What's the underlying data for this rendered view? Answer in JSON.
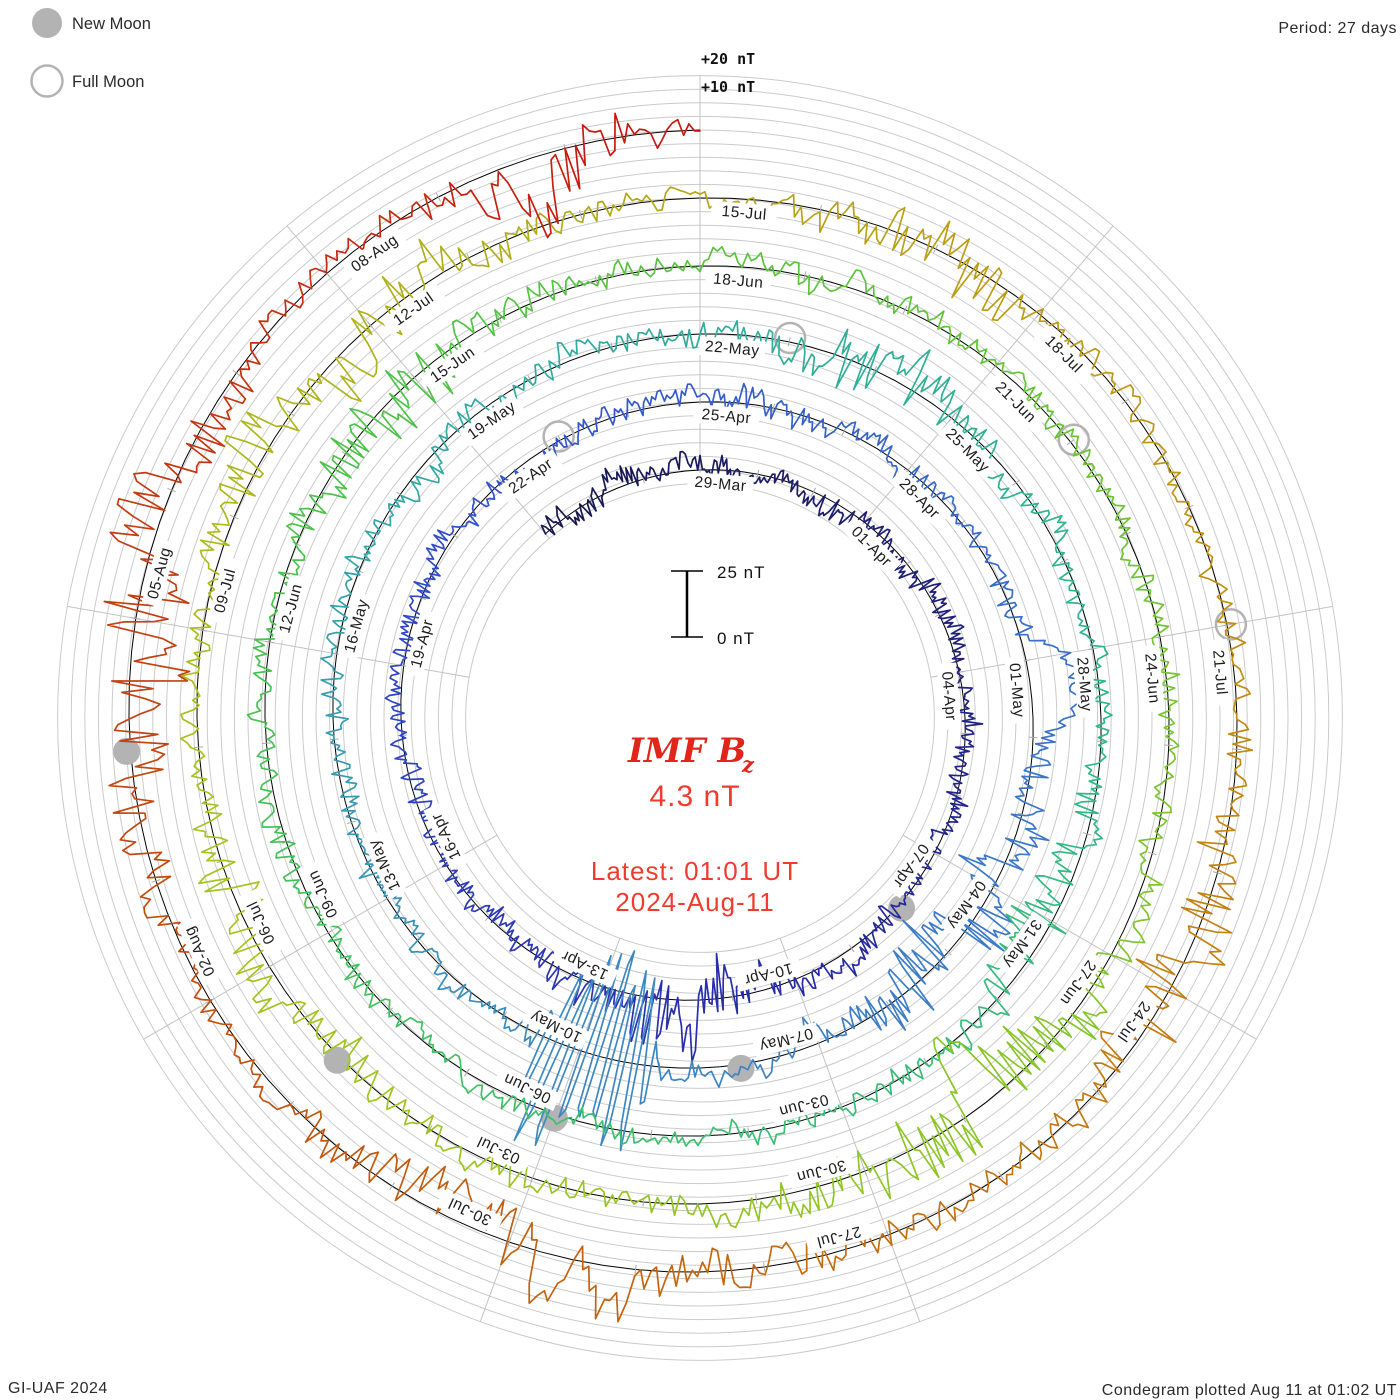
{
  "legend": {
    "new_moon": "New Moon",
    "full_moon": "Full Moon",
    "marker_color": "#b3b3b3"
  },
  "header": {
    "period": "Period: 27 days"
  },
  "radial_scale": {
    "plus20": "+20 nT",
    "plus10": "+10 nT",
    "bar_top": "25 nT",
    "bar_bottom": "0 nT"
  },
  "center": {
    "title": "IMF B",
    "title_sub": "z",
    "value": "4.3 nT",
    "latest_time": "Latest: 01:01 UT",
    "latest_date": "2024-Aug-11",
    "text_color": "#f03c30"
  },
  "footer": {
    "left": "GI-UAF 2024",
    "right": "Condegram plotted Aug 11 at 01:02 UT"
  },
  "chart_data": {
    "type": "line",
    "subtype": "condegram-polar-spiral",
    "title": "IMF Bz condegram",
    "period_days": 27,
    "days_per_label": 3,
    "label_step_degrees": 40,
    "latest_value_nT": 4.3,
    "latest_timestamp": "2024-Aug-11 01:01 UT",
    "plotted_timestamp": "Aug 11 at 01:02 UT",
    "minor_grid_nT": 5,
    "scalebar_nT": 25,
    "outer_marks_nT": [
      "+10 nT",
      "+20 nT"
    ],
    "rings": [
      {
        "labels": [
          "29-Mar",
          "01-Apr",
          "04-Apr",
          "07-Apr",
          "10-Apr",
          "13-Apr",
          "16-Apr",
          "19-Apr",
          "22-Apr"
        ]
      },
      {
        "labels": [
          "25-Apr",
          "28-Apr",
          "01-May",
          "04-May",
          "07-May",
          "10-May",
          "13-May",
          "16-May",
          "19-May"
        ]
      },
      {
        "labels": [
          "22-May",
          "25-May",
          "28-May",
          "31-May",
          "03-Jun",
          "06-Jun",
          "09-Jun",
          "12-Jun",
          "15-Jun"
        ]
      },
      {
        "labels": [
          "18-Jun",
          "21-Jun",
          "24-Jun",
          "27-Jun",
          "30-Jun",
          "03-Jul",
          "06-Jul",
          "09-Jul",
          "12-Jul"
        ]
      },
      {
        "labels": [
          "15-Jul",
          "18-Jul",
          "21-Jul",
          "24-Jul",
          "27-Jul",
          "30-Jul",
          "02-Aug",
          "05-Aug",
          "08-Aug"
        ]
      }
    ],
    "moons": {
      "new": [
        {
          "date": "08-Apr",
          "day": 10
        },
        {
          "date": "08-May",
          "day": 40
        },
        {
          "date": "06-Jun",
          "day": 69
        },
        {
          "date": "05-Jul",
          "day": 98
        },
        {
          "date": "04-Aug",
          "day": 128
        }
      ],
      "full": [
        {
          "date": "23-Apr",
          "day": 25
        },
        {
          "date": "23-May",
          "day": 55
        },
        {
          "date": "22-Jun",
          "day": 85
        },
        {
          "date": "21-Jul",
          "day": 114
        }
      ]
    },
    "palette_stops": [
      [
        -3,
        "#16164f"
      ],
      [
        5,
        "#20207a"
      ],
      [
        14,
        "#2b2fae"
      ],
      [
        24,
        "#3353cb"
      ],
      [
        34,
        "#3a74c9"
      ],
      [
        42,
        "#3e88c2"
      ],
      [
        50,
        "#32a8a6"
      ],
      [
        58,
        "#2fb292"
      ],
      [
        67,
        "#3abf72"
      ],
      [
        76,
        "#49c24b"
      ],
      [
        84,
        "#63c436"
      ],
      [
        92,
        "#8cc627"
      ],
      [
        100,
        "#a8c41d"
      ],
      [
        107,
        "#b2ab18"
      ],
      [
        112,
        "#bf9712"
      ],
      [
        118,
        "#c47a10"
      ],
      [
        124,
        "#c25a0e"
      ],
      [
        130,
        "#c33a12"
      ],
      [
        135,
        "#c91511"
      ]
    ],
    "disturbance_events": [
      [
        13.8,
        1.3,
        2.4
      ],
      [
        36.8,
        1.6,
        2.6
      ],
      [
        56,
        1.0,
        1.6
      ],
      [
        63,
        1.0,
        1.9
      ],
      [
        77.6,
        1.1,
        2.4
      ],
      [
        91.8,
        1.5,
        2.9
      ],
      [
        99,
        1.2,
        1.8
      ],
      [
        104.6,
        1.6,
        2.0
      ],
      [
        110,
        1.0,
        1.7
      ],
      [
        117,
        1.3,
        2.2
      ],
      [
        122.6,
        1.6,
        2.4
      ],
      [
        129,
        1.6,
        2.6
      ],
      [
        133.9,
        0.9,
        2.3
      ]
    ],
    "smooth_bump": {
      "day": 33.3,
      "width": 0.55,
      "amplitude_nT": 14
    },
    "spike_window": {
      "start_day": 41.0,
      "end_day": 42.6,
      "amplitude_nT": 30
    },
    "grid_color": "#cbcbcb",
    "spoke_color": "#c3c3c3",
    "baseline_color": "#000000"
  }
}
